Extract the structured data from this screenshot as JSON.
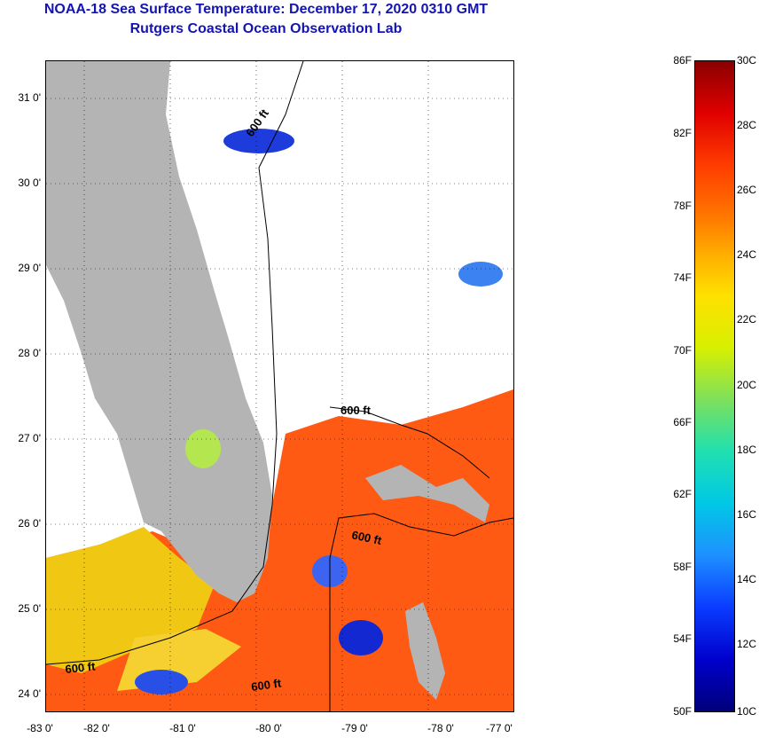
{
  "title": "NOAA-18 Sea Surface Temperature:  December 17, 2020 0310 GMT",
  "subtitle": "Rutgers Coastal Ocean Observation Lab",
  "map": {
    "y_ticks": [
      "31 0'",
      "30 0'",
      "29 0'",
      "28 0'",
      "27 0'",
      "26 0'",
      "25 0'",
      "24 0'"
    ],
    "x_ticks": [
      "-83 0'",
      "-82 0'",
      "-81 0'",
      "-80 0'",
      "-79 0'",
      "-78 0'",
      "-77 0'"
    ],
    "contour_labels": [
      "600 ft",
      "600 ft",
      "600 ft",
      "600 ft",
      "600 ft"
    ],
    "colors": {
      "land": "#b4b4b4",
      "cloud": "#ffffff",
      "warm_water": "#ff5a14",
      "cool_water": "#f0c814"
    }
  },
  "colorbar": {
    "fahrenheit": [
      "86F",
      "82F",
      "78F",
      "74F",
      "70F",
      "66F",
      "62F",
      "58F",
      "54F",
      "50F"
    ],
    "celsius": [
      "30C",
      "28C",
      "26C",
      "24C",
      "22C",
      "20C",
      "18C",
      "16C",
      "14C",
      "12C",
      "10C"
    ]
  }
}
